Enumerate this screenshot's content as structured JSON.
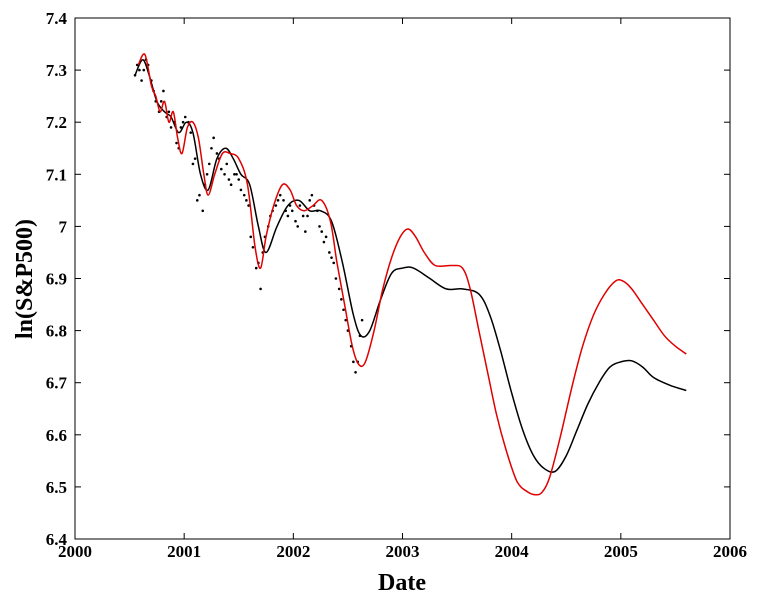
{
  "chart_data": {
    "type": "line",
    "title": "",
    "xlabel": "Date",
    "ylabel": "ln(S&P500)",
    "xlim": [
      2000,
      2006
    ],
    "ylim": [
      6.4,
      7.4
    ],
    "xticks": [
      "2000",
      "2001",
      "2002",
      "2003",
      "2004",
      "2005",
      "2006"
    ],
    "yticks": [
      "6.4",
      "6.5",
      "6.6",
      "6.7",
      "6.8",
      "6.9",
      "7",
      "7.1",
      "7.2",
      "7.3",
      "7.4"
    ],
    "grid": false,
    "legend": "none",
    "series": [
      {
        "kind": "scatter-dots",
        "color": "#000000",
        "x": [
          2000.55,
          2000.57,
          2000.59,
          2000.61,
          2000.63,
          2000.65,
          2000.67,
          2000.7,
          2000.72,
          2000.74,
          2000.77,
          2000.79,
          2000.81,
          2000.84,
          2000.86,
          2000.88,
          2000.91,
          2000.93,
          2000.95,
          2000.97,
          2000.99,
          2001.01,
          2001.04,
          2001.06,
          2001.08,
          2001.1,
          2001.12,
          2001.14,
          2001.17,
          2001.19,
          2001.21,
          2001.23,
          2001.25,
          2001.27,
          2001.3,
          2001.32,
          2001.34,
          2001.37,
          2001.39,
          2001.41,
          2001.43,
          2001.46,
          2001.48,
          2001.5,
          2001.52,
          2001.55,
          2001.57,
          2001.59,
          2001.61,
          2001.63,
          2001.66,
          2001.68,
          2001.7,
          2001.72,
          2001.74,
          2001.77,
          2001.79,
          2001.81,
          2001.84,
          2001.86,
          2001.88,
          2001.91,
          2001.93,
          2001.95,
          2001.97,
          2001.99,
          2002.02,
          2002.04,
          2002.06,
          2002.09,
          2002.11,
          2002.13,
          2002.15,
          2002.17,
          2002.19,
          2002.22,
          2002.24,
          2002.26,
          2002.28,
          2002.3,
          2002.33,
          2002.35,
          2002.37,
          2002.39,
          2002.42,
          2002.44,
          2002.46,
          2002.48,
          2002.5,
          2002.53,
          2002.55,
          2002.57,
          2002.59,
          2002.61,
          2002.63
        ],
        "y": [
          7.29,
          7.31,
          7.3,
          7.28,
          7.3,
          7.32,
          7.31,
          7.28,
          7.26,
          7.24,
          7.22,
          7.24,
          7.26,
          7.21,
          7.22,
          7.19,
          7.2,
          7.16,
          7.15,
          7.19,
          7.2,
          7.21,
          7.2,
          7.18,
          7.12,
          7.13,
          7.05,
          7.06,
          7.03,
          7.08,
          7.1,
          7.12,
          7.15,
          7.17,
          7.14,
          7.13,
          7.11,
          7.1,
          7.12,
          7.09,
          7.08,
          7.1,
          7.1,
          7.09,
          7.07,
          7.06,
          7.05,
          7.04,
          6.98,
          6.96,
          6.92,
          6.93,
          6.88,
          6.95,
          6.98,
          7.0,
          7.02,
          7.03,
          7.04,
          7.05,
          7.06,
          7.05,
          7.03,
          7.02,
          7.04,
          7.03,
          7.01,
          7.0,
          7.04,
          7.02,
          6.99,
          7.02,
          7.05,
          7.06,
          7.04,
          7.03,
          7.0,
          6.99,
          6.97,
          6.98,
          6.95,
          6.94,
          6.93,
          6.9,
          6.88,
          6.86,
          6.84,
          6.82,
          6.8,
          6.77,
          6.74,
          6.72,
          6.74,
          6.79,
          6.82
        ]
      },
      {
        "kind": "line",
        "color": "#000000",
        "x": [
          2000.55,
          2000.62,
          2000.68,
          2000.75,
          2000.82,
          2000.88,
          2000.95,
          2001.02,
          2001.08,
          2001.15,
          2001.22,
          2001.3,
          2001.38,
          2001.45,
          2001.52,
          2001.6,
          2001.68,
          2001.75,
          2001.85,
          2001.95,
          2002.05,
          2002.15,
          2002.25,
          2002.35,
          2002.45,
          2002.55,
          2002.62,
          2002.7,
          2002.8,
          2002.9,
          2003.0,
          2003.1,
          2003.25,
          2003.4,
          2003.55,
          2003.7,
          2003.8,
          2003.9,
          2004.0,
          2004.1,
          2004.2,
          2004.3,
          2004.4,
          2004.5,
          2004.6,
          2004.7,
          2004.8,
          2004.9,
          2005.0,
          2005.1,
          2005.2,
          2005.3,
          2005.45,
          2005.6
        ],
        "y": [
          7.29,
          7.32,
          7.29,
          7.24,
          7.22,
          7.21,
          7.18,
          7.2,
          7.18,
          7.1,
          7.07,
          7.13,
          7.15,
          7.13,
          7.1,
          7.08,
          7.0,
          6.95,
          7.0,
          7.04,
          7.05,
          7.03,
          7.03,
          7.01,
          6.93,
          6.83,
          6.79,
          6.8,
          6.86,
          6.91,
          6.92,
          6.92,
          6.9,
          6.88,
          6.88,
          6.87,
          6.83,
          6.76,
          6.68,
          6.61,
          6.56,
          6.535,
          6.53,
          6.56,
          6.61,
          6.66,
          6.7,
          6.73,
          6.74,
          6.742,
          6.73,
          6.71,
          6.695,
          6.685
        ]
      },
      {
        "kind": "line",
        "color": "#e00000",
        "x": [
          2000.58,
          2000.64,
          2000.7,
          2000.74,
          2000.78,
          2000.82,
          2000.86,
          2000.9,
          2000.94,
          2000.98,
          2001.03,
          2001.08,
          2001.13,
          2001.18,
          2001.22,
          2001.28,
          2001.35,
          2001.42,
          2001.5,
          2001.58,
          2001.65,
          2001.7,
          2001.75,
          2001.82,
          2001.9,
          2001.97,
          2002.03,
          2002.1,
          2002.18,
          2002.26,
          2002.34,
          2002.4,
          2002.47,
          2002.54,
          2002.6,
          2002.66,
          2002.74,
          2002.82,
          2002.9,
          2002.98,
          2003.05,
          2003.12,
          2003.2,
          2003.3,
          2003.45,
          2003.55,
          2003.62,
          2003.7,
          2003.78,
          2003.86,
          2003.95,
          2004.05,
          2004.15,
          2004.22,
          2004.28,
          2004.35,
          2004.45,
          2004.55,
          2004.65,
          2004.75,
          2004.85,
          2004.95,
          2005.02,
          2005.1,
          2005.2,
          2005.3,
          2005.4,
          2005.5,
          2005.6
        ],
        "y": [
          7.31,
          7.33,
          7.27,
          7.25,
          7.22,
          7.24,
          7.2,
          7.22,
          7.17,
          7.14,
          7.19,
          7.2,
          7.17,
          7.1,
          7.06,
          7.1,
          7.14,
          7.14,
          7.13,
          7.08,
          6.96,
          6.92,
          6.98,
          7.04,
          7.08,
          7.07,
          7.04,
          7.03,
          7.04,
          7.05,
          7.01,
          6.93,
          6.85,
          6.77,
          6.735,
          6.74,
          6.8,
          6.88,
          6.94,
          6.98,
          6.995,
          6.98,
          6.95,
          6.925,
          6.925,
          6.92,
          6.88,
          6.8,
          6.72,
          6.64,
          6.57,
          6.51,
          6.49,
          6.485,
          6.49,
          6.52,
          6.6,
          6.69,
          6.77,
          6.83,
          6.87,
          6.895,
          6.895,
          6.88,
          6.85,
          6.82,
          6.79,
          6.77,
          6.755
        ]
      }
    ]
  }
}
